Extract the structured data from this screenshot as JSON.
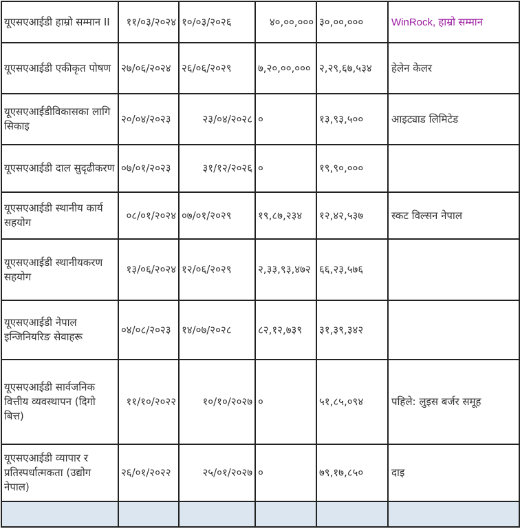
{
  "table": {
    "rows": [
      {
        "name": "यूएसएआईडी हाम्रो सम्मान II",
        "start": "११/०३/२०२४",
        "end": "१०/०३/२०२६",
        "amount1": "४०,००,०००",
        "amount2": "३०,००,०००",
        "partner": "WinRock, हाम्रो सम्मान",
        "partner_color": "#9b1aa0"
      },
      {
        "name": " यूएसएआईडी एकीकृत पोषण",
        "start": "२७/०६/२०२४",
        "end": "२६/०६/२०२९",
        "amount1": "७,२०,००,०००",
        "amount2": "२,२९,६७,५३४",
        "partner": "हेलेन केलर"
      },
      {
        "name": " यूएसएआईडीविकासका लागि सिकाइ",
        "start": "२०/०४/२०२३",
        "end": "२३/०४/२०२८",
        "amount1": "०",
        "amount2": "१३,९३,५००",
        "partner": "आइट्याड लिमिटेड"
      },
      {
        "name": " यूएसएआईडी दाल सुदृढीकरण",
        "start": "०७/०१/२०२३",
        "end": "३१/१२/२०२६",
        "amount1": "०",
        "amount2": "१९,९०,०००",
        "partner": ""
      },
      {
        "name": " यूएसएआईडी स्थानीय कार्य सहयोग",
        "start": "०८/०१/२०२४",
        "end": "०७/०१/२०२९",
        "amount1": "१९,८७,२३४",
        "amount2": "१२,४२,५३७",
        "partner": "स्कट विल्सन नेपाल"
      },
      {
        "name": " यूएसएआईडी स्थानीयकरण सहयोग",
        "start": "१३/०६/२०२४",
        "end": "१२/०६/२०२९",
        "amount1": "२,३३,९३,४७२",
        "amount2": "६६,२३,५७६",
        "partner": ""
      },
      {
        "name": " यूएसएआईडी नेपाल इन्जिनियरिङ सेवाहरू",
        "start": "०४/०८/२०२३",
        "end": "१४/०७/२०२८",
        "amount1": "८२,१२,७३९",
        "amount2": "३१,३९,३४२",
        "partner": ""
      },
      {
        "name": " यूएसएआईडी सार्वजनिक वित्तीय व्यवस्थापन (दिगो बित्त)",
        "start": "११/१०/२०२२",
        "end": "१०/१०/२०२७",
        "amount1": "०",
        "amount2": "५१,८५,०९४",
        "partner": "पहिले: लुइस बर्जर समूह"
      },
      {
        "name": " यूएसएआईडी व्यापार र प्रतिस्पर्धात्मकता (उद्योग नेपाल)",
        "start": "२६/०१/२०२२",
        "end": "२५/०१/२०२७",
        "amount1": "०",
        "amount2": "७९,१७,८५०",
        "partner": "दाइ"
      }
    ]
  }
}
